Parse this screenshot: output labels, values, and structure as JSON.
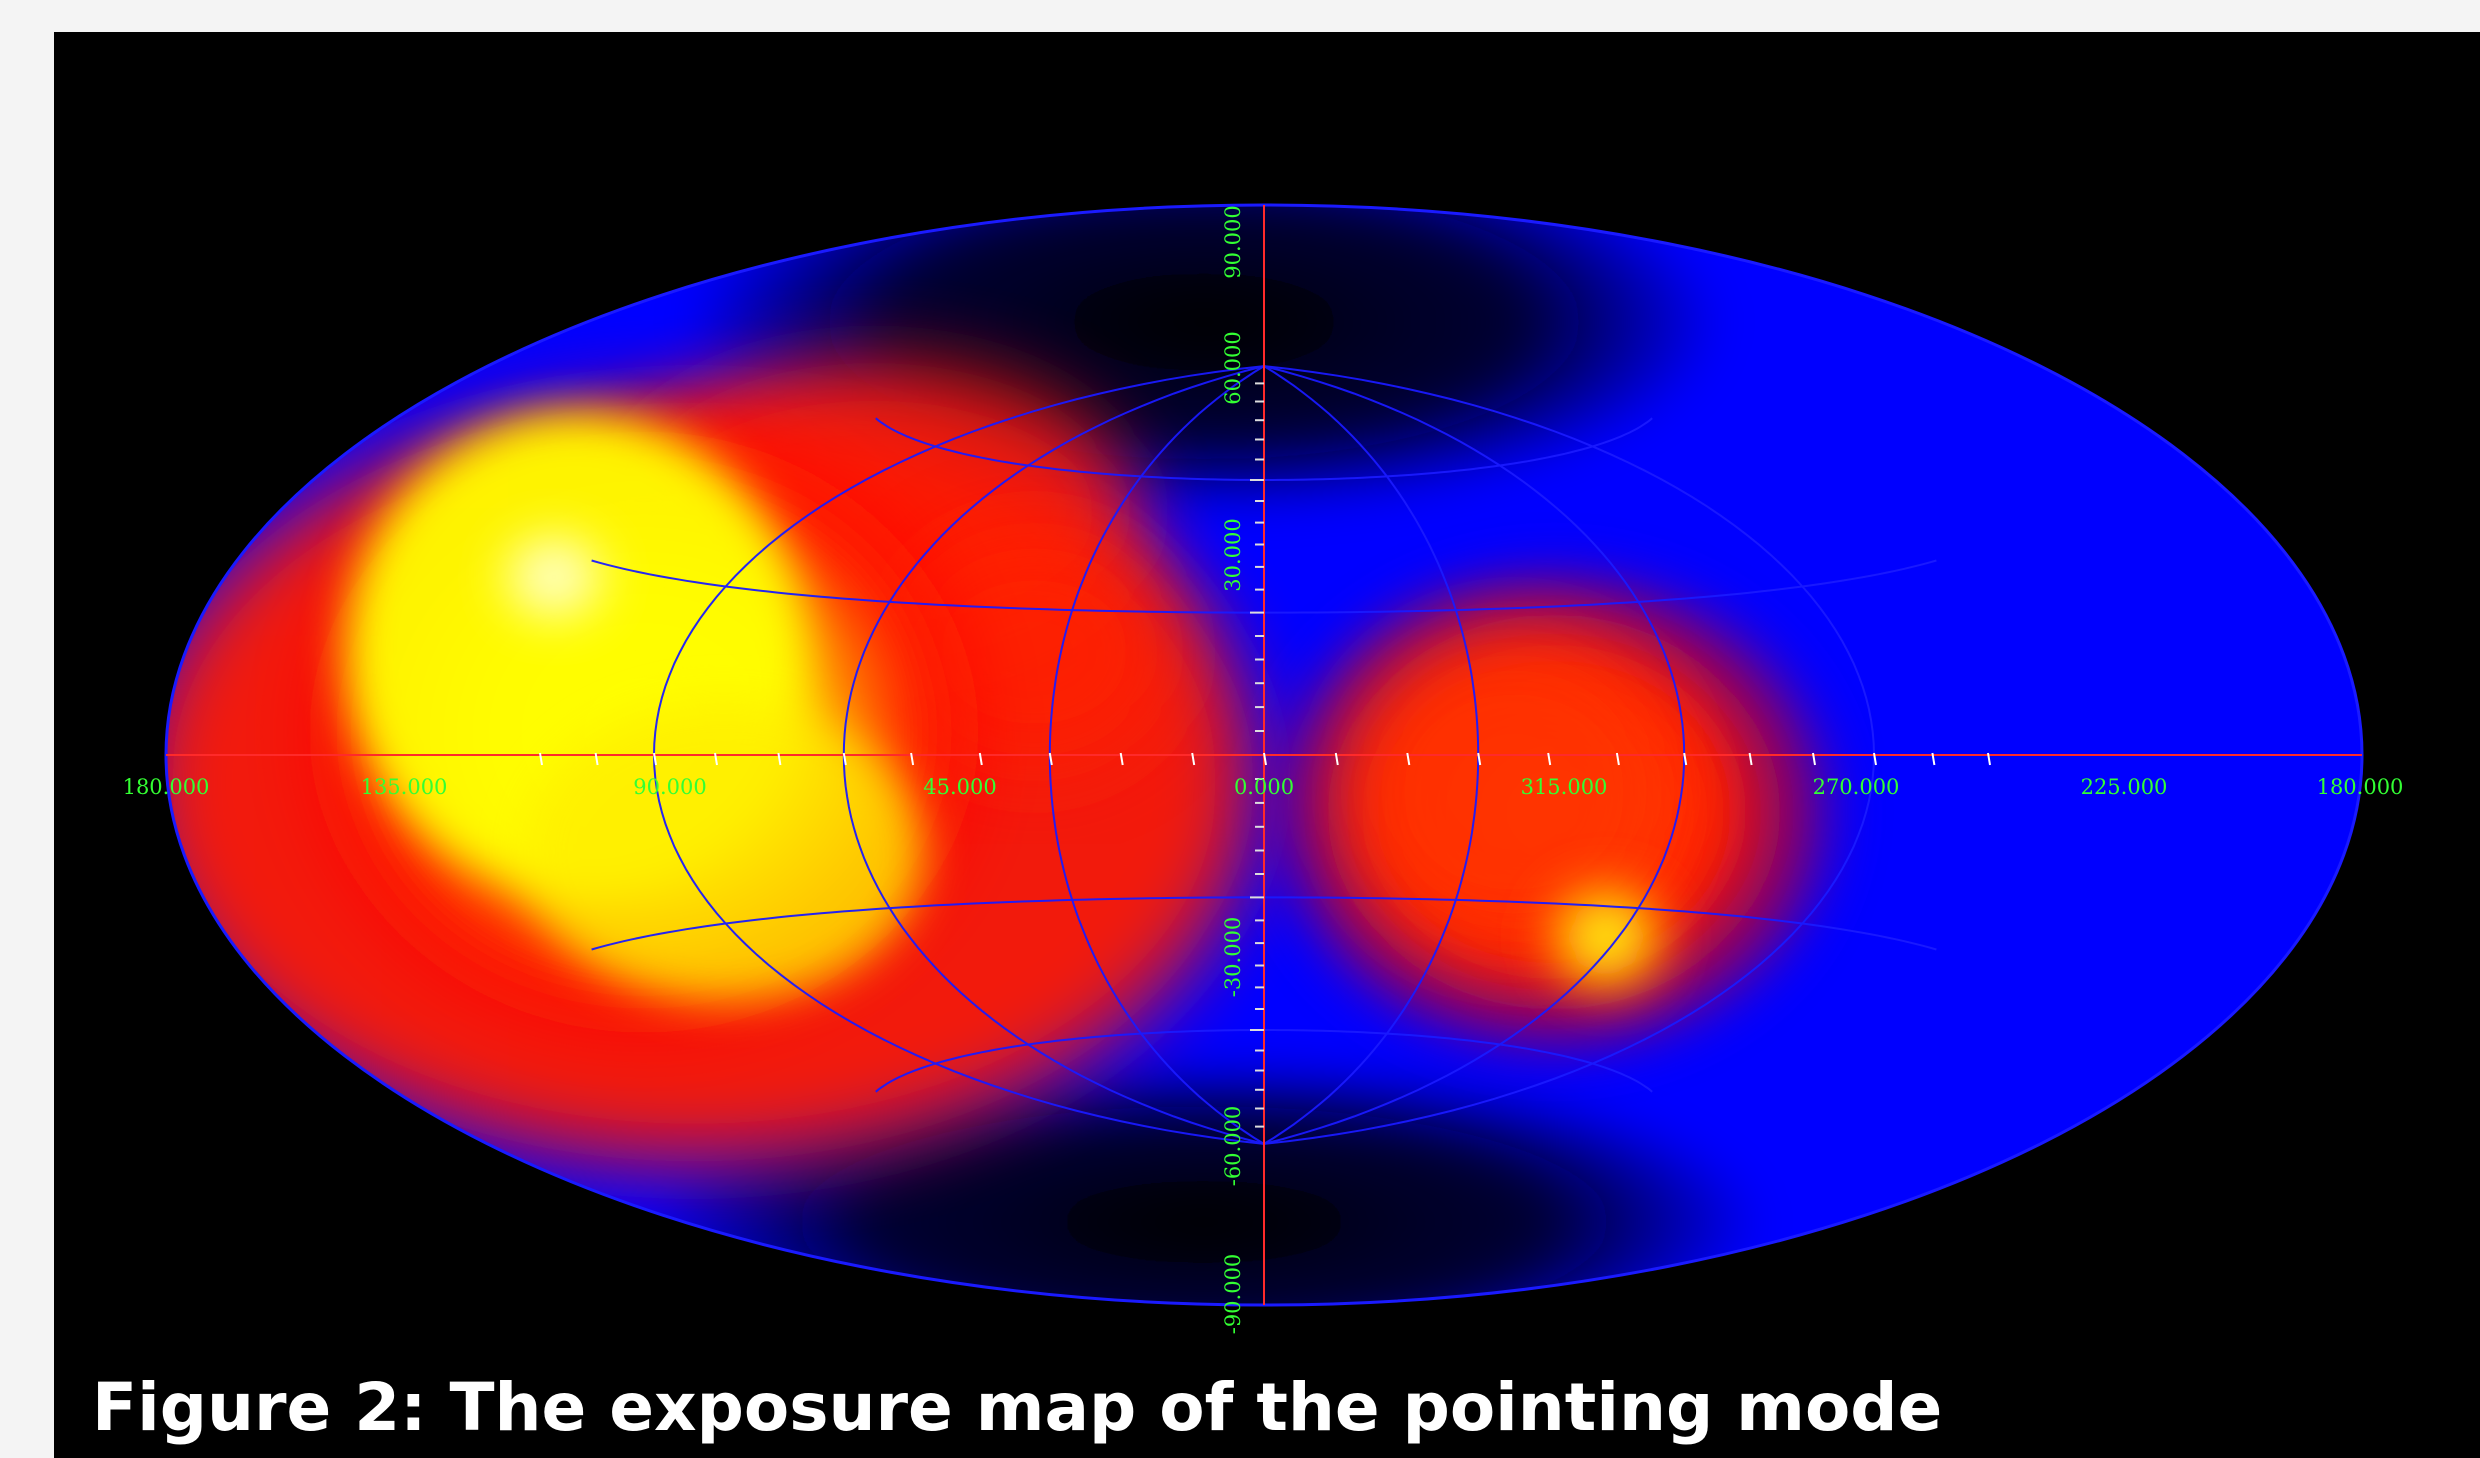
{
  "figure": {
    "caption": "Figure 2: The exposure map of the pointing mode",
    "projection": "Aitoff / Hammer equal-area sky map",
    "lon_tick_labels": [
      "180.000",
      "135.000",
      "90.000",
      "45.000",
      "0.000",
      "315.000",
      "270.000",
      "225.000",
      "180.000"
    ],
    "lat_tick_labels": [
      "90.000",
      "60.000",
      "30.000",
      "-30.000",
      "-60.000",
      "-90.000"
    ],
    "colors": {
      "background": "#000000",
      "label_green": "#33ff33",
      "axis_red": "#ff2a2a",
      "grid_blue": "#1a1aff",
      "low_exposure": "#0000ff",
      "mid_exposure": "#ff1a00",
      "high_exposure": "#ffff00",
      "peak_exposure": "#ffffff"
    },
    "colormap": "black-blue-red-yellow-white"
  }
}
